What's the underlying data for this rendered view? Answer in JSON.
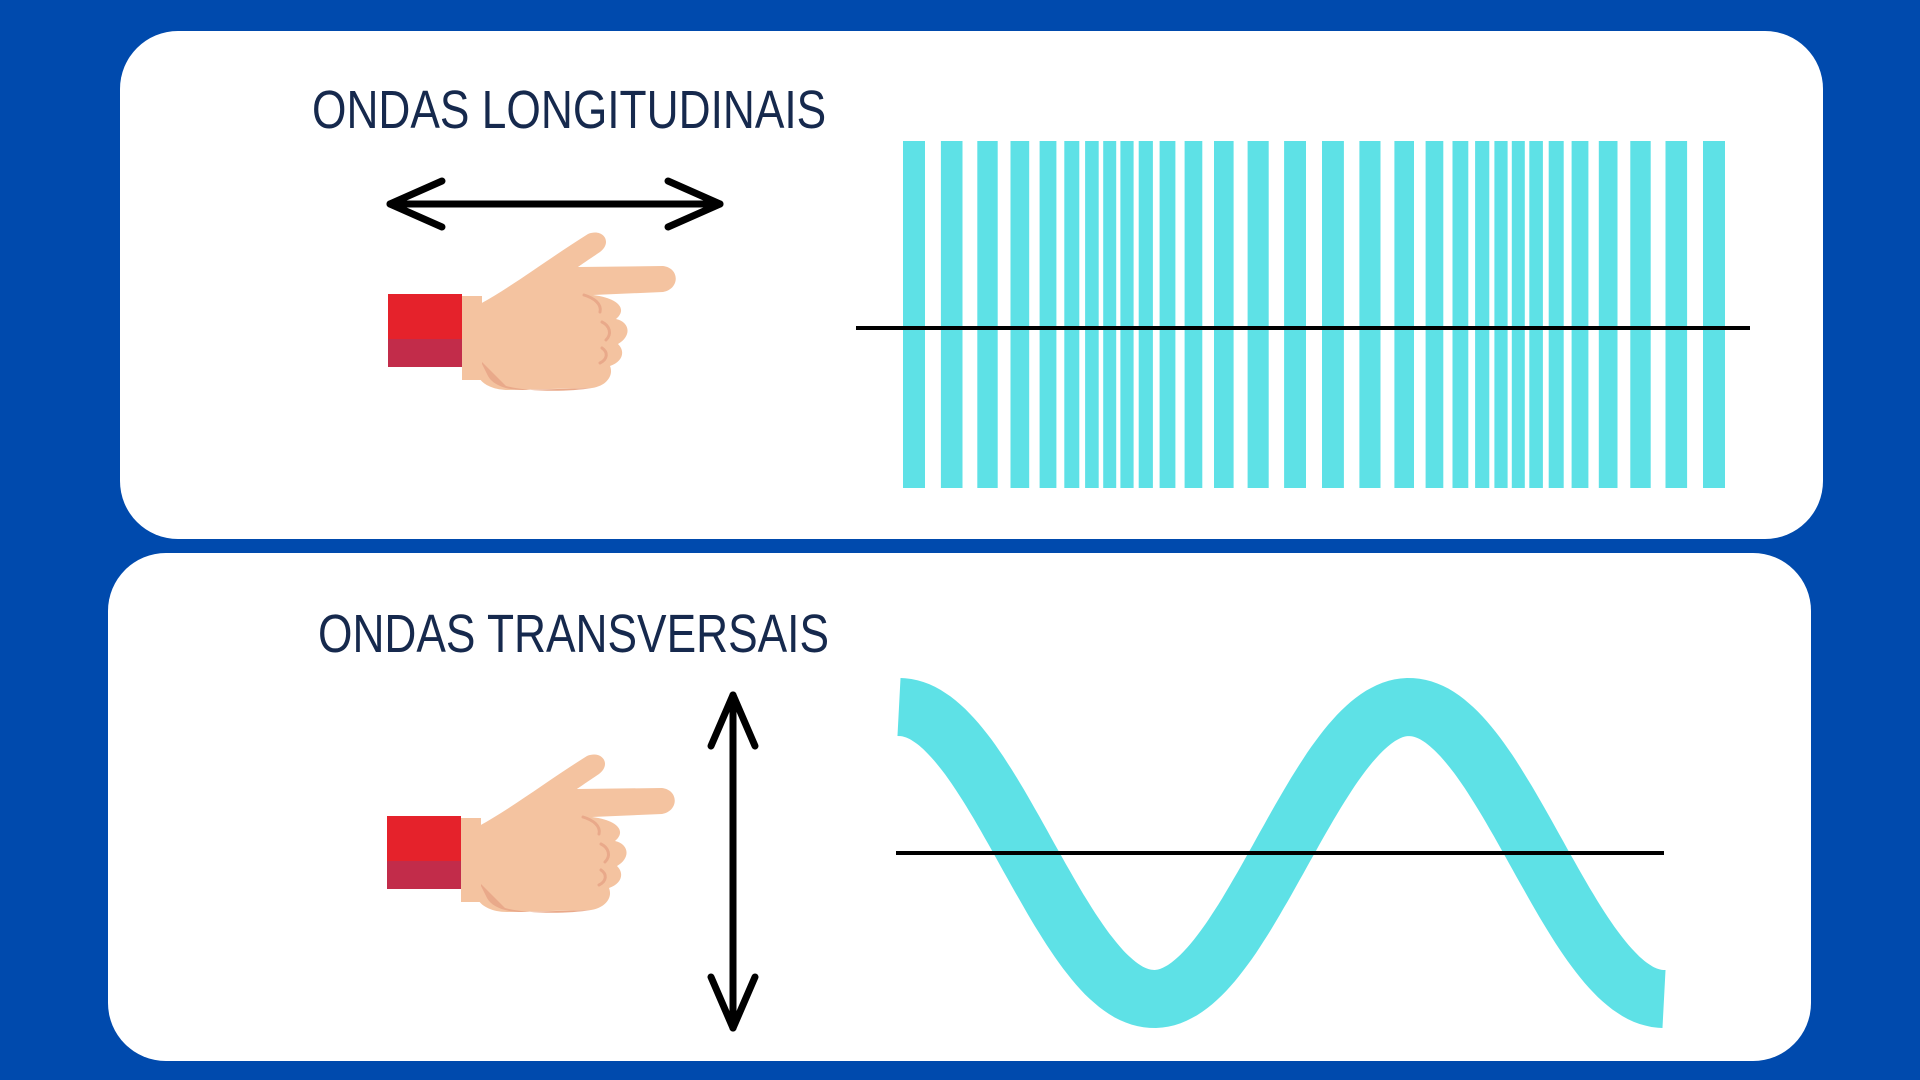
{
  "panels": [
    {
      "title": "ONDAS LONGITUDINAIS",
      "icons": [
        "pointing-hand-icon",
        "horizontal-double-arrow-icon"
      ],
      "wave": "longitudinal",
      "bar_count": 30
    },
    {
      "title": "ONDAS TRANSVERSAIS",
      "icons": [
        "pointing-hand-icon",
        "vertical-double-arrow-icon"
      ],
      "wave": "transverse",
      "cycles": 1.5
    }
  ],
  "colors": {
    "background": "#004aad",
    "panel": "#ffffff",
    "title": "#16294d",
    "wave": "#5ee1e6",
    "axis": "#000000",
    "skin": "#f4c3a0",
    "skin_shadow": "#e9a98a",
    "cuff": "#e5222b",
    "cuff_shadow": "#c22c4a"
  }
}
